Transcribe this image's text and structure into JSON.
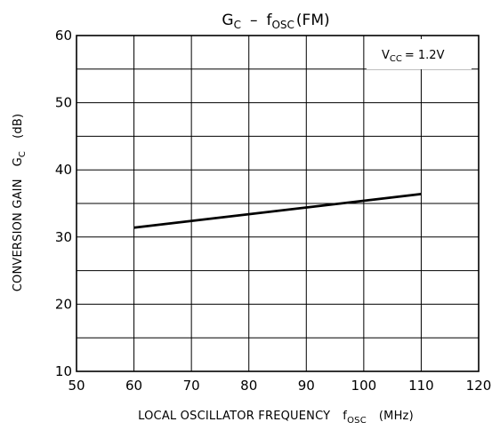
{
  "chart_data": {
    "type": "line",
    "title": {
      "lhs_main": "G",
      "lhs_sub": "C",
      "dash": "–",
      "rhs_main": "f",
      "rhs_sub": "OSC",
      "suffix": "(FM)"
    },
    "xlabel": {
      "text": "LOCAL OSCILLATOR FREQUENCY",
      "symbol": "f",
      "symbol_sub": "OSC",
      "unit": "(MHz)"
    },
    "ylabel": {
      "text": "CONVERSION GAIN",
      "symbol": "G",
      "symbol_sub": "C",
      "unit": "(dB)"
    },
    "annotation": {
      "main": "V",
      "sub": "CC",
      "value": "= 1.2V"
    },
    "xlim": [
      50,
      120
    ],
    "ylim": [
      10,
      60
    ],
    "xticks": [
      "50",
      "60",
      "70",
      "80",
      "90",
      "100",
      "110",
      "120"
    ],
    "yticks": [
      "10",
      "20",
      "30",
      "40",
      "50",
      "60"
    ],
    "grid": true,
    "series": [
      {
        "x": [
          60,
          110
        ],
        "y": [
          31.4,
          36.4
        ]
      }
    ]
  },
  "colors": {
    "line": "#000000",
    "grid": "#000000",
    "background": "#ffffff"
  }
}
